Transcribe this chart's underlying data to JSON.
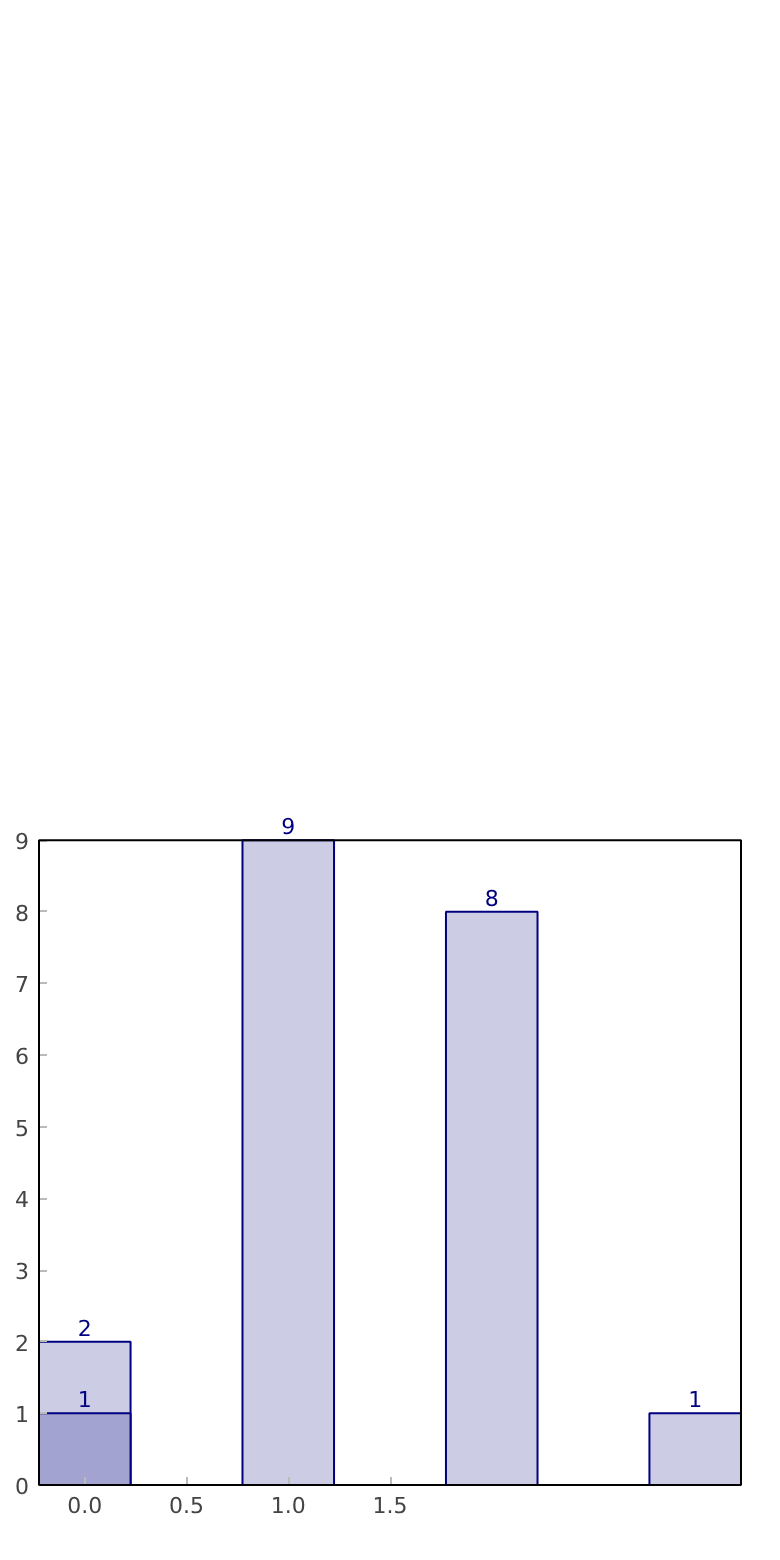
{
  "chart_data": {
    "type": "bar",
    "x": [
      0,
      1,
      2,
      3
    ],
    "series": [
      {
        "color": "#cccce5",
        "values": [
          2,
          9,
          8,
          1
        ]
      },
      {
        "color": "#a3a3d1",
        "x": [
          0
        ],
        "values": [
          1
        ]
      }
    ],
    "xlim": [
      -0.225,
      3.225
    ],
    "xticks": [
      {
        "value": 0,
        "label": "0.0"
      },
      {
        "value": 0.5,
        "label": "0.5"
      },
      {
        "value": 1,
        "label": "1.0"
      },
      {
        "value": 1.5,
        "label": "1.5"
      }
    ],
    "ylim": [
      0,
      9
    ],
    "yticks": [
      0,
      1,
      2,
      3,
      4,
      5,
      6,
      7,
      8,
      9
    ],
    "data_labels": true,
    "grid": false
  }
}
